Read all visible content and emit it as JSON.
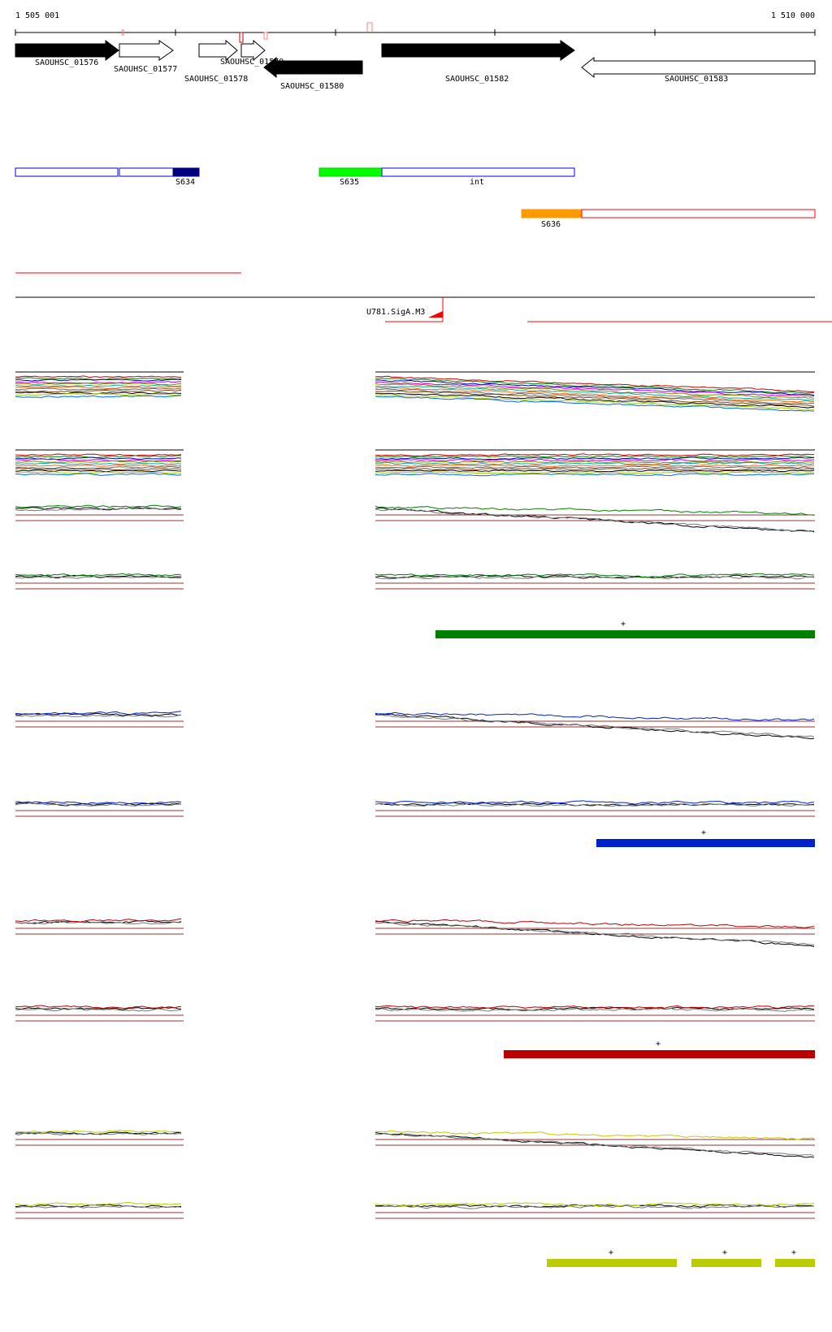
{
  "axis": {
    "start_label": "1 505 001",
    "end_label": "1 510 000"
  },
  "genes": [
    {
      "id": "SAOUHSC_01576",
      "strand": "+",
      "fill": "#000000"
    },
    {
      "id": "SAOUHSC_01577",
      "strand": "+",
      "fill": "#ffffff"
    },
    {
      "id": "SAOUHSC_01578",
      "strand": "+",
      "fill": "#ffffff"
    },
    {
      "id": "SAOUHSC_01579",
      "strand": "+",
      "fill": "#ffffff"
    },
    {
      "id": "SAOUHSC_01580",
      "strand": "-",
      "fill": "#000000"
    },
    {
      "id": "SAOUHSC_01582",
      "strand": "+",
      "fill": "#000000"
    },
    {
      "id": "SAOUHSC_01583",
      "strand": "-",
      "fill": "#ffffff"
    }
  ],
  "segments": [
    {
      "label": "S634",
      "color": "#000080"
    },
    {
      "label": "S635",
      "color": "#00ff00"
    },
    {
      "label": "int",
      "color": "#0000ff"
    },
    {
      "label": "S636",
      "color": "#ff9900"
    }
  ],
  "promoter": {
    "label": "U781.SigA.M3",
    "color": "#ff0000"
  },
  "condition_panels": [
    {
      "color": "#008000",
      "marks": [
        "+"
      ]
    },
    {
      "color": "#0022cc",
      "marks": [
        "+"
      ]
    },
    {
      "color": "#bb0000",
      "marks": [
        "+"
      ]
    },
    {
      "color": "#bbcc00",
      "marks": [
        "+",
        "+",
        "+"
      ]
    }
  ]
}
